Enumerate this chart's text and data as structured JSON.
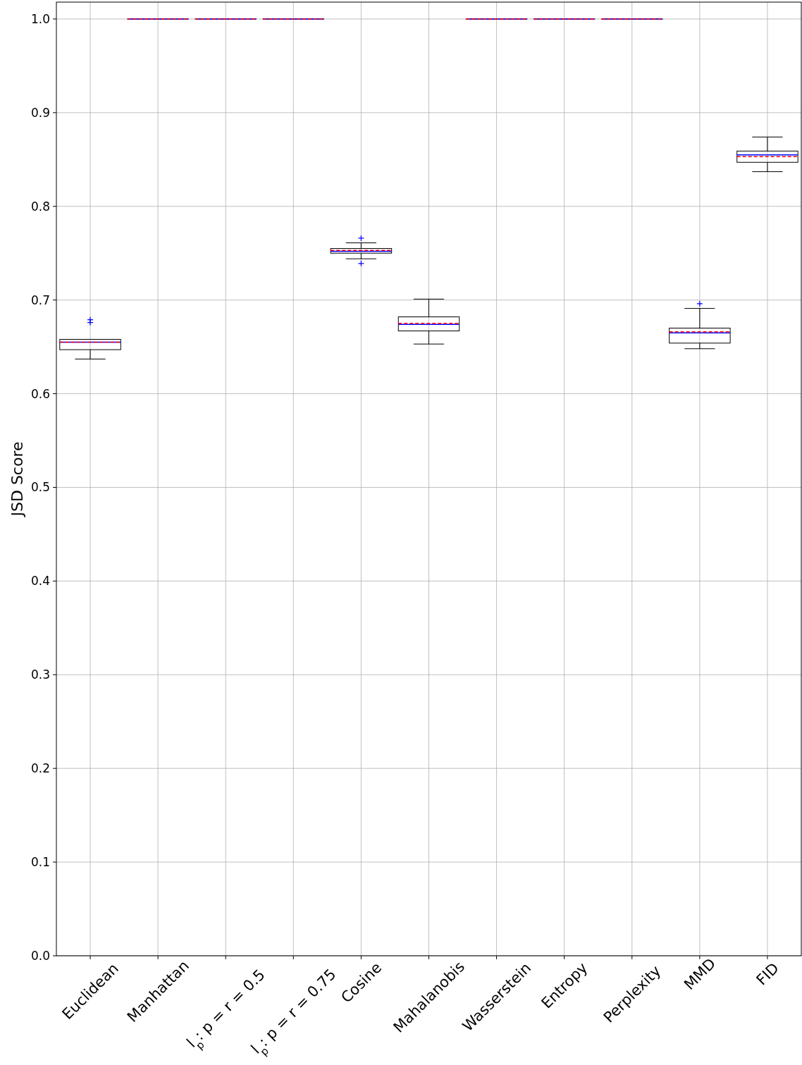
{
  "chart_data": {
    "type": "box",
    "ylabel": "JSD Score",
    "categories": [
      "Euclidean",
      "Manhattan",
      "l$_{p}$: p = r = 0.5",
      "l$_{p}$: p = r = 0.75",
      "Cosine",
      "Mahalanobis",
      "Wasserstein",
      "Entropy",
      "Perplexity",
      "MMD",
      "FID"
    ],
    "series": [
      {
        "color": "#000000",
        "boxes": [
          {
            "low": 0.637,
            "q1": 0.647,
            "median": 0.655,
            "q3": 0.658,
            "high": 0.658,
            "mean": 0.655,
            "outliers": [
              0.676,
              0.679
            ]
          },
          {
            "low": 1.0,
            "q1": 1.0,
            "median": 1.0,
            "q3": 1.0,
            "high": 1.0,
            "mean": 1.0
          },
          {
            "low": 1.0,
            "q1": 1.0,
            "median": 1.0,
            "q3": 1.0,
            "high": 1.0,
            "mean": 1.0
          },
          {
            "low": 1.0,
            "q1": 1.0,
            "median": 1.0,
            "q3": 1.0,
            "high": 1.0,
            "mean": 1.0
          },
          {
            "low": 0.744,
            "q1": 0.75,
            "median": 0.752,
            "q3": 0.755,
            "high": 0.761,
            "mean": 0.753,
            "outliers": [
              0.739,
              0.766
            ]
          },
          {
            "low": 0.653,
            "q1": 0.667,
            "median": 0.674,
            "q3": 0.682,
            "high": 0.701,
            "mean": 0.675
          },
          {
            "low": 1.0,
            "q1": 1.0,
            "median": 1.0,
            "q3": 1.0,
            "high": 1.0,
            "mean": 1.0
          },
          {
            "low": 1.0,
            "q1": 1.0,
            "median": 1.0,
            "q3": 1.0,
            "high": 1.0,
            "mean": 1.0
          },
          {
            "low": 1.0,
            "q1": 1.0,
            "median": 1.0,
            "q3": 1.0,
            "high": 1.0,
            "mean": 1.0
          },
          {
            "low": 0.648,
            "q1": 0.654,
            "median": 0.665,
            "q3": 0.67,
            "high": 0.691,
            "mean": 0.666,
            "outliers": [
              0.696
            ]
          },
          {
            "low": 0.837,
            "q1": 0.847,
            "median": 0.855,
            "q3": 0.859,
            "high": 0.874,
            "mean": 0.853
          }
        ]
      }
    ],
    "ylim": [
      0,
      1.018
    ],
    "yticks": [
      {
        "value": 0,
        "label": "0.0"
      },
      0.1,
      0.2,
      0.3,
      0.4,
      0.5,
      0.6,
      0.7,
      0.8,
      0.9,
      {
        "value": 1,
        "label": "1.0"
      }
    ],
    "grid": true
  }
}
